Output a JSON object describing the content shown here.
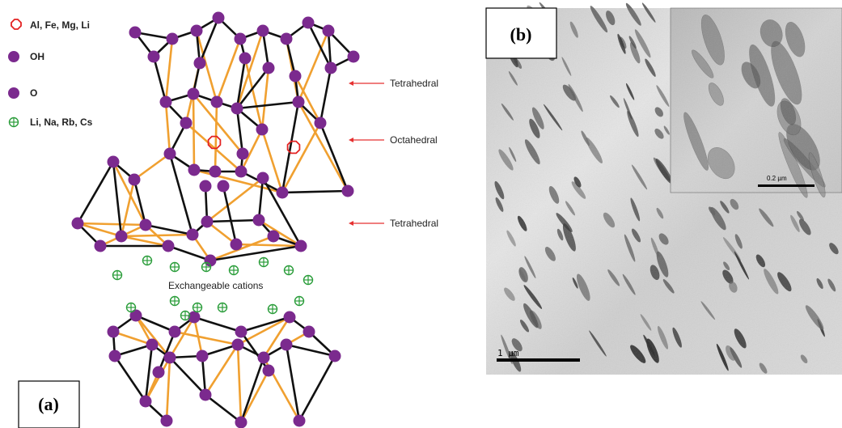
{
  "legend": {
    "metal_sites": "Al, Fe, Mg, Li",
    "hydroxyl": "OH",
    "oxygen": "O",
    "interlayer_cations": "Li, Na, Rb, Cs"
  },
  "annotations": {
    "top_tetrahedral": "Tetrahedral",
    "octahedral": "Octahedral",
    "bottom_tetrahedral": "Tetrahedral",
    "exchangeable": "Exchangeable cations"
  },
  "panels": {
    "a_label": "(a)",
    "b_label": "(b)"
  },
  "micrograph": {
    "main_scale": "1 µm",
    "inset_scale": "0.2 µm"
  },
  "colors": {
    "atom": "#7b2a8e",
    "metal": "#e32222",
    "cation": "#2a9d3a",
    "bond_black": "#111111",
    "bond_orange": "#f0a030",
    "arrow": "#e53030"
  }
}
